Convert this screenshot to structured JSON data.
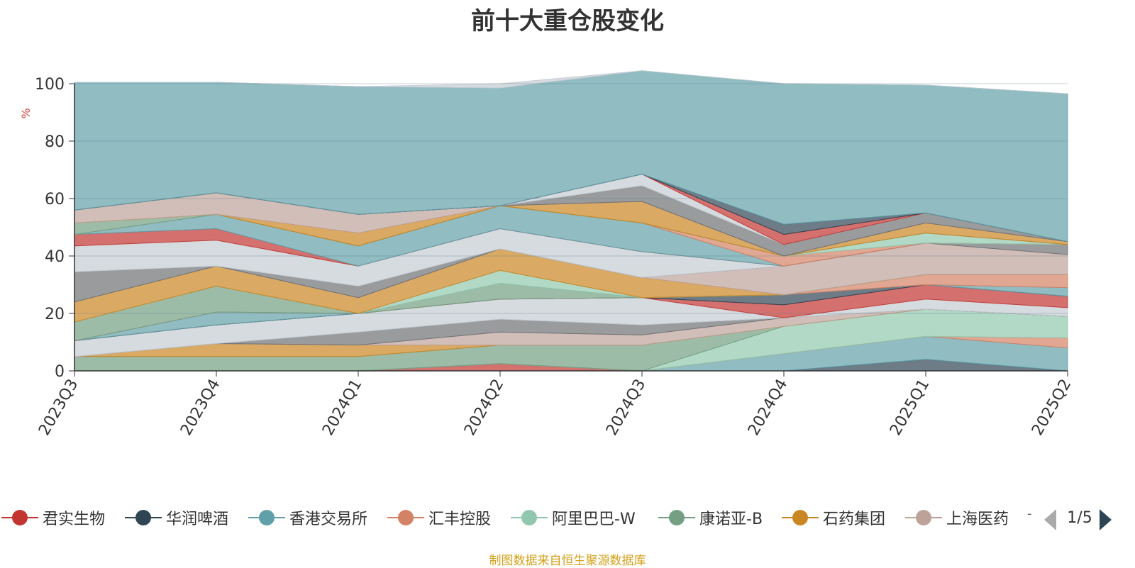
{
  "title": "前十大重仓股变化",
  "source": "制图数据来自恒生聚源数据库",
  "legend": {
    "page": "1/5",
    "ellipsis": "-"
  },
  "chart_data": {
    "type": "area",
    "stacked": true,
    "title": "前十大重仓股变化",
    "ylabel": "%",
    "ylim": [
      0,
      100
    ],
    "yticks": [
      0,
      20,
      40,
      60,
      80,
      100
    ],
    "grid": true,
    "categories": [
      "2023Q3",
      "2023Q4",
      "2024Q1",
      "2024Q2",
      "2024Q3",
      "2024Q4",
      "2025Q1",
      "2025Q2"
    ],
    "legend_position": "bottom",
    "series": [
      {
        "name": "君实生物",
        "color": "#c23531",
        "values": [
          0,
          0,
          0,
          2.5,
          0,
          0,
          0,
          0
        ]
      },
      {
        "name": "华润啤酒",
        "color": "#2f4554",
        "values": [
          0,
          0,
          0,
          0,
          0,
          0,
          4,
          0
        ]
      },
      {
        "name": "香港交易所",
        "color": "#61a0a8",
        "values": [
          0,
          0,
          0,
          0,
          0,
          6,
          8,
          8
        ]
      },
      {
        "name": "汇丰控股",
        "color": "#d48265",
        "values": [
          0,
          0,
          0,
          0,
          0,
          0,
          0,
          3.5
        ]
      },
      {
        "name": "阿里巴巴-W",
        "color": "#91c7ae",
        "values": [
          0,
          0,
          0,
          0,
          0,
          9.5,
          9.5,
          7.5
        ]
      },
      {
        "name": "康诺亚-B",
        "color": "#749f83",
        "values": [
          5,
          5,
          5,
          6.5,
          9,
          0,
          0,
          0
        ]
      },
      {
        "name": "石药集团",
        "color": "#ca8622",
        "values": [
          0,
          4.5,
          4,
          0,
          0,
          0,
          0,
          0
        ]
      },
      {
        "name": "上海医药",
        "color": "#bda29a",
        "values": [
          0,
          0,
          0,
          4.5,
          3.5,
          3,
          0,
          0
        ]
      },
      {
        "name": "",
        "color": "#6e7074",
        "values": [
          0,
          0,
          4.5,
          4.5,
          3.5,
          0,
          0,
          0
        ]
      },
      {
        "name": "",
        "color": "#c4ccd3",
        "values": [
          5.5,
          6.5,
          6.5,
          7,
          9.5,
          0,
          3.5,
          3
        ]
      },
      {
        "name": "",
        "color": "#c23531",
        "values": [
          0,
          0,
          0,
          0,
          0,
          4.5,
          5,
          4
        ]
      },
      {
        "name": "",
        "color": "#2f4554",
        "values": [
          0,
          0,
          0,
          0,
          0,
          3.5,
          0,
          0
        ]
      },
      {
        "name": "",
        "color": "#61a0a8",
        "values": [
          0,
          4.5,
          0,
          0,
          0,
          0,
          0,
          3
        ]
      },
      {
        "name": "",
        "color": "#d48265",
        "values": [
          0,
          0,
          0,
          0,
          0,
          0,
          3.5,
          4.5
        ]
      },
      {
        "name": "",
        "color": "#749f83",
        "values": [
          6.5,
          9,
          0,
          5.5,
          0,
          0,
          0,
          0
        ]
      },
      {
        "name": "",
        "color": "#91c7ae",
        "values": [
          0,
          0,
          0,
          4.5,
          0,
          0,
          0,
          0
        ]
      },
      {
        "name": "",
        "color": "#ca8622",
        "values": [
          7,
          7,
          5.5,
          7.5,
          7,
          0,
          0,
          0
        ]
      },
      {
        "name": "",
        "color": "#bda29a",
        "values": [
          0,
          0,
          0,
          0,
          0,
          10,
          11,
          7
        ]
      },
      {
        "name": "",
        "color": "#6e7074",
        "values": [
          10.5,
          0,
          4,
          0,
          0,
          0,
          0,
          3.5
        ]
      },
      {
        "name": "",
        "color": "#c4ccd3",
        "values": [
          9,
          9,
          7,
          7,
          9,
          0,
          0,
          0
        ]
      },
      {
        "name": "",
        "color": "#c23531",
        "values": [
          4,
          4,
          0,
          0,
          0,
          0,
          0,
          0
        ]
      },
      {
        "name": "",
        "color": "#61a0a8",
        "values": [
          0,
          5,
          7,
          8,
          10,
          0,
          0,
          0
        ]
      },
      {
        "name": "",
        "color": "#d48265",
        "values": [
          0,
          0,
          0,
          0,
          0,
          3.5,
          0,
          0
        ]
      },
      {
        "name": "",
        "color": "#91c7ae",
        "values": [
          0,
          0,
          0,
          0,
          0,
          0,
          3.5,
          0
        ]
      },
      {
        "name": "",
        "color": "#749f83",
        "values": [
          4,
          0,
          0,
          0,
          0,
          0,
          0,
          0
        ]
      },
      {
        "name": "",
        "color": "#ca8622",
        "values": [
          0,
          0,
          4.5,
          0,
          7.5,
          0,
          3.5,
          1
        ]
      },
      {
        "name": "",
        "color": "#bda29a",
        "values": [
          4.5,
          7.5,
          6.5,
          0,
          0,
          0,
          0,
          0
        ]
      },
      {
        "name": "",
        "color": "#6e7074",
        "values": [
          0,
          0,
          0,
          0,
          5.5,
          4,
          3.5,
          0
        ]
      },
      {
        "name": "",
        "color": "#c4ccd3",
        "values": [
          0,
          0,
          0,
          0,
          4,
          0,
          0,
          0
        ]
      },
      {
        "name": "",
        "color": "#c23531",
        "values": [
          0,
          0,
          0,
          0,
          0,
          3.5,
          0,
          0
        ]
      },
      {
        "name": "",
        "color": "#2f4554",
        "values": [
          0,
          0,
          0,
          0,
          0,
          3.5,
          0,
          0
        ]
      },
      {
        "name": "",
        "color": "#61a0a8",
        "values": [
          44.5,
          38.5,
          44.5,
          41,
          36,
          49,
          44.5,
          51.5
        ]
      },
      {
        "name": "",
        "color": "#c4ccd3",
        "values": [
          0,
          0,
          0,
          1.5,
          0,
          0,
          0,
          0
        ]
      }
    ]
  }
}
